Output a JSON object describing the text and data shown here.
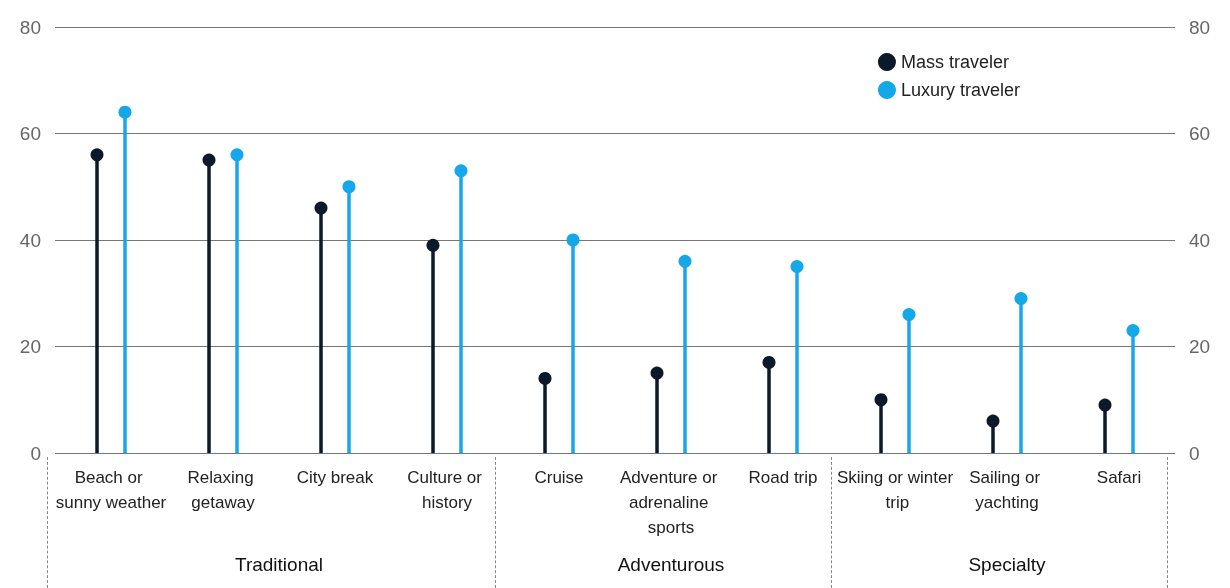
{
  "chart_data": {
    "type": "lollipop",
    "categories": [
      "Beach or sunny weather",
      "Relaxing getaway",
      "City break",
      "Culture or history",
      "Cruise",
      "Adventure or adrenaline sports",
      "Road trip",
      "Skiing or winter trip",
      "Sailing or yachting",
      "Safari"
    ],
    "series": [
      {
        "name": "Mass traveler",
        "color": "#0b1a2a",
        "values": [
          56,
          55,
          46,
          39,
          14,
          15,
          17,
          10,
          6,
          9
        ]
      },
      {
        "name": "Luxury traveler",
        "color": "#14a8e8",
        "values": [
          64,
          56,
          50,
          53,
          40,
          36,
          35,
          26,
          29,
          23
        ]
      }
    ],
    "ylim": [
      0,
      80
    ],
    "yticks": [
      0,
      20,
      40,
      60,
      80
    ],
    "y2lim": [
      0,
      80
    ],
    "y2ticks": [
      0,
      20,
      40,
      60,
      80
    ],
    "annotations": [
      "Traditional",
      "Adventurous",
      "Specialty"
    ],
    "grid": "y",
    "legend": "top right",
    "marker": "circle"
  }
}
